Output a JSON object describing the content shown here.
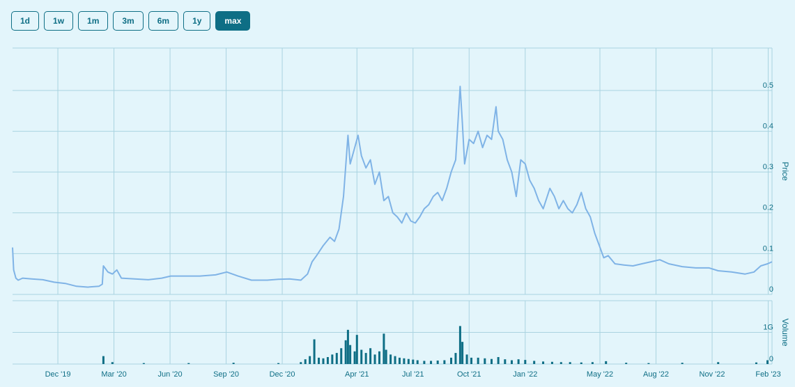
{
  "range_buttons": {
    "labels": [
      "1d",
      "1w",
      "1m",
      "3m",
      "6m",
      "1y",
      "max"
    ],
    "selected": 6
  },
  "chart_data": [
    {
      "type": "line",
      "y_label": "Price",
      "color": "#7fb3e6",
      "x": [
        2019.715,
        2019.72,
        2019.73,
        2019.74,
        2019.76,
        2019.8,
        2019.85,
        2019.9,
        2019.95,
        2020.0,
        2020.05,
        2020.1,
        2020.115,
        2020.12,
        2020.14,
        2020.16,
        2020.18,
        2020.2,
        2020.26,
        2020.32,
        2020.38,
        2020.42,
        2020.48,
        2020.55,
        2020.62,
        2020.67,
        2020.72,
        2020.78,
        2020.85,
        2020.9,
        2020.95,
        2021.0,
        2021.03,
        2021.05,
        2021.07,
        2021.1,
        2021.13,
        2021.15,
        2021.17,
        2021.19,
        2021.21,
        2021.22,
        2021.24,
        2021.255,
        2021.27,
        2021.29,
        2021.31,
        2021.33,
        2021.35,
        2021.37,
        2021.39,
        2021.41,
        2021.43,
        2021.45,
        2021.47,
        2021.49,
        2021.51,
        2021.53,
        2021.55,
        2021.57,
        2021.59,
        2021.61,
        2021.63,
        2021.65,
        2021.67,
        2021.69,
        2021.71,
        2021.72,
        2021.73,
        2021.75,
        2021.77,
        2021.79,
        2021.81,
        2021.83,
        2021.85,
        2021.87,
        2021.88,
        2021.9,
        2021.92,
        2021.94,
        2021.96,
        2021.98,
        2022.0,
        2022.02,
        2022.04,
        2022.06,
        2022.08,
        2022.11,
        2022.13,
        2022.15,
        2022.17,
        2022.19,
        2022.21,
        2022.23,
        2022.25,
        2022.27,
        2022.29,
        2022.31,
        2022.33,
        2022.35,
        2022.37,
        2022.4,
        2022.44,
        2022.48,
        2022.52,
        2022.56,
        2022.6,
        2022.64,
        2022.7,
        2022.76,
        2022.82,
        2022.86,
        2022.92,
        2022.98,
        2023.02,
        2023.05,
        2023.08,
        2023.1
      ],
      "values": [
        0.115,
        0.06,
        0.04,
        0.035,
        0.04,
        0.038,
        0.036,
        0.03,
        0.027,
        0.02,
        0.018,
        0.02,
        0.025,
        0.07,
        0.055,
        0.05,
        0.06,
        0.04,
        0.038,
        0.036,
        0.04,
        0.045,
        0.045,
        0.045,
        0.048,
        0.055,
        0.045,
        0.035,
        0.035,
        0.037,
        0.038,
        0.035,
        0.05,
        0.08,
        0.095,
        0.12,
        0.14,
        0.13,
        0.16,
        0.24,
        0.39,
        0.32,
        0.36,
        0.39,
        0.34,
        0.31,
        0.33,
        0.27,
        0.3,
        0.23,
        0.24,
        0.2,
        0.19,
        0.175,
        0.2,
        0.18,
        0.175,
        0.19,
        0.21,
        0.22,
        0.24,
        0.25,
        0.23,
        0.26,
        0.3,
        0.33,
        0.51,
        0.42,
        0.32,
        0.38,
        0.37,
        0.4,
        0.36,
        0.39,
        0.38,
        0.46,
        0.4,
        0.38,
        0.33,
        0.3,
        0.24,
        0.33,
        0.32,
        0.28,
        0.26,
        0.23,
        0.21,
        0.26,
        0.24,
        0.21,
        0.23,
        0.21,
        0.2,
        0.22,
        0.25,
        0.21,
        0.19,
        0.15,
        0.12,
        0.09,
        0.095,
        0.075,
        0.072,
        0.07,
        0.075,
        0.08,
        0.085,
        0.075,
        0.068,
        0.065,
        0.065,
        0.058,
        0.055,
        0.05,
        0.055,
        0.07,
        0.075,
        0.08
      ],
      "xlim": [
        2019.715,
        2023.1
      ],
      "xticks": [
        {
          "value": 2019.917,
          "label": "Dec '19"
        },
        {
          "value": 2020.167,
          "label": "Mar '20"
        },
        {
          "value": 2020.417,
          "label": "Jun '20"
        },
        {
          "value": 2020.667,
          "label": "Sep '20"
        },
        {
          "value": 2020.917,
          "label": "Dec '20"
        },
        {
          "value": 2021.25,
          "label": "Apr '21"
        },
        {
          "value": 2021.5,
          "label": "Jul '21"
        },
        {
          "value": 2021.75,
          "label": "Oct '21"
        },
        {
          "value": 2022.0,
          "label": "Jan '22"
        },
        {
          "value": 2022.333,
          "label": "May '22"
        },
        {
          "value": 2022.583,
          "label": "Aug '22"
        },
        {
          "value": 2022.833,
          "label": "Nov '22"
        },
        {
          "value": 2023.083,
          "label": "Feb '23"
        }
      ],
      "ylim": [
        0,
        0.604
      ],
      "yticks": [
        0,
        0.1,
        0.2,
        0.3,
        0.4,
        0.5
      ],
      "grid": true
    },
    {
      "type": "bar",
      "y_label": "Volume",
      "color": "#0e6e85",
      "x": [
        2020.12,
        2020.16,
        2020.3,
        2020.5,
        2020.7,
        2020.9,
        2021.0,
        2021.02,
        2021.04,
        2021.06,
        2021.08,
        2021.1,
        2021.12,
        2021.14,
        2021.16,
        2021.18,
        2021.2,
        2021.21,
        2021.22,
        2021.24,
        2021.25,
        2021.27,
        2021.29,
        2021.31,
        2021.33,
        2021.35,
        2021.37,
        2021.38,
        2021.4,
        2021.42,
        2021.44,
        2021.46,
        2021.48,
        2021.5,
        2021.52,
        2021.55,
        2021.58,
        2021.61,
        2021.64,
        2021.67,
        2021.69,
        2021.71,
        2021.72,
        2021.74,
        2021.76,
        2021.79,
        2021.82,
        2021.85,
        2021.88,
        2021.91,
        2021.94,
        2021.97,
        2022.0,
        2022.04,
        2022.08,
        2022.12,
        2022.16,
        2022.2,
        2022.25,
        2022.3,
        2022.36,
        2022.45,
        2022.55,
        2022.7,
        2022.86,
        2023.03,
        2023.08
      ],
      "values": [
        250000000,
        60000000,
        30000000,
        30000000,
        40000000,
        30000000,
        60000000,
        150000000,
        250000000,
        780000000,
        200000000,
        180000000,
        220000000,
        300000000,
        350000000,
        500000000,
        750000000,
        1080000000,
        600000000,
        400000000,
        920000000,
        450000000,
        350000000,
        500000000,
        300000000,
        400000000,
        960000000,
        450000000,
        300000000,
        250000000,
        200000000,
        180000000,
        160000000,
        140000000,
        120000000,
        100000000,
        100000000,
        110000000,
        120000000,
        200000000,
        350000000,
        1200000000,
        700000000,
        300000000,
        200000000,
        200000000,
        180000000,
        160000000,
        220000000,
        150000000,
        120000000,
        150000000,
        130000000,
        100000000,
        80000000,
        70000000,
        60000000,
        60000000,
        50000000,
        60000000,
        90000000,
        40000000,
        30000000,
        40000000,
        60000000,
        50000000,
        120000000
      ],
      "xlim": [
        2019.715,
        2023.1
      ],
      "ylim": [
        0,
        2000000000
      ],
      "yticks": [
        0,
        {
          "value": 1000000000,
          "label": "1G"
        }
      ],
      "grid": true
    }
  ]
}
